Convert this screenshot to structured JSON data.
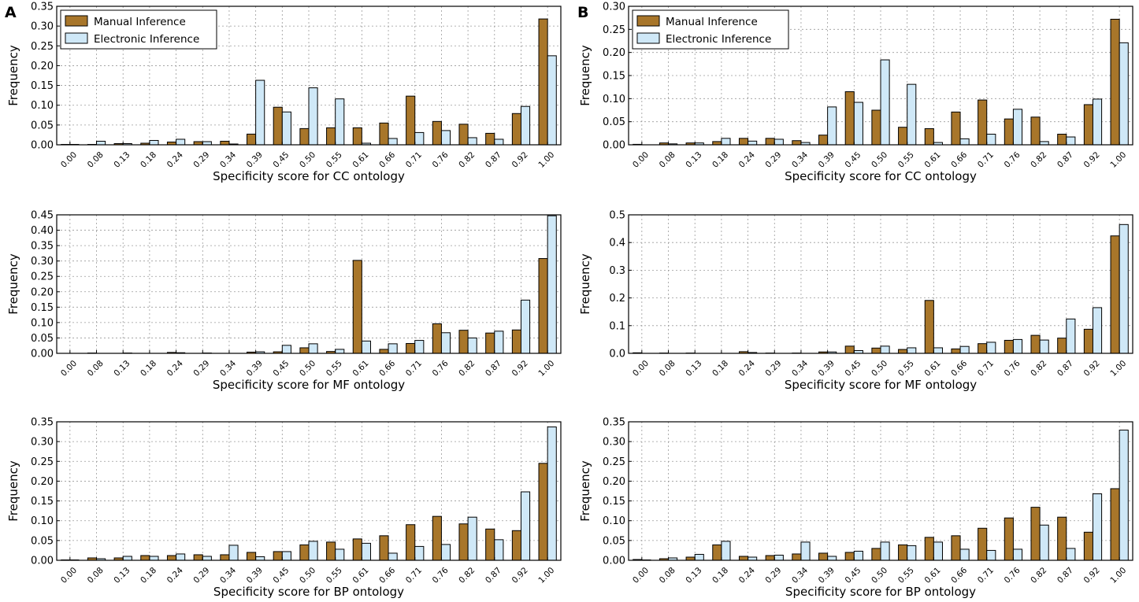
{
  "panels": [
    {
      "letter": "A"
    },
    {
      "letter": "B"
    }
  ],
  "legend": {
    "manual_label": "Manual Inference",
    "electronic_label": "Electronic Inference"
  },
  "colors": {
    "manual": "#A8762A",
    "electronic": "#CFE8F7",
    "edge": "#000000"
  },
  "chart_data": [
    {
      "panel": "A",
      "type": "bar",
      "title": "",
      "xlabel": "Specificity score for CC ontology",
      "ylabel": "Frequency",
      "categories": [
        "0.00",
        "0.08",
        "0.13",
        "0.18",
        "0.24",
        "0.29",
        "0.34",
        "0.39",
        "0.45",
        "0.50",
        "0.55",
        "0.61",
        "0.66",
        "0.71",
        "0.76",
        "0.82",
        "0.87",
        "0.92",
        "1.00"
      ],
      "ylim": [
        0,
        0.35
      ],
      "yticks": [
        "0.00",
        "0.05",
        "0.10",
        "0.15",
        "0.20",
        "0.25",
        "0.30",
        "0.35"
      ],
      "series": [
        {
          "name": "Manual Inference",
          "values": [
            0.001,
            0.001,
            0.003,
            0.004,
            0.007,
            0.008,
            0.009,
            0.027,
            0.095,
            0.041,
            0.043,
            0.043,
            0.055,
            0.123,
            0.059,
            0.052,
            0.029,
            0.079,
            0.318
          ]
        },
        {
          "name": "Electronic Inference",
          "values": [
            0.001,
            0.009,
            0.003,
            0.011,
            0.014,
            0.008,
            0.002,
            0.163,
            0.083,
            0.144,
            0.116,
            0.004,
            0.016,
            0.031,
            0.036,
            0.018,
            0.014,
            0.097,
            0.225
          ]
        }
      ]
    },
    {
      "panel": "A",
      "type": "bar",
      "title": "",
      "xlabel": "Specificity score for MF ontology",
      "ylabel": "Frequency",
      "categories": [
        "0.00",
        "0.08",
        "0.13",
        "0.18",
        "0.24",
        "0.29",
        "0.34",
        "0.39",
        "0.45",
        "0.50",
        "0.55",
        "0.61",
        "0.66",
        "0.71",
        "0.76",
        "0.82",
        "0.87",
        "0.92",
        "1.00"
      ],
      "ylim": [
        0,
        0.45
      ],
      "yticks": [
        "0.00",
        "0.05",
        "0.10",
        "0.15",
        "0.20",
        "0.25",
        "0.30",
        "0.35",
        "0.40",
        "0.45"
      ],
      "series": [
        {
          "name": "Manual Inference",
          "values": [
            0.0,
            0.001,
            0.0,
            0.0,
            0.003,
            0.0,
            0.0,
            0.004,
            0.005,
            0.018,
            0.006,
            0.302,
            0.013,
            0.032,
            0.096,
            0.075,
            0.066,
            0.076,
            0.308
          ]
        },
        {
          "name": "Electronic Inference",
          "values": [
            0.0,
            0.0,
            0.001,
            0.0,
            0.002,
            0.001,
            0.0,
            0.005,
            0.026,
            0.031,
            0.013,
            0.04,
            0.031,
            0.042,
            0.067,
            0.05,
            0.072,
            0.173,
            0.447
          ]
        }
      ]
    },
    {
      "panel": "A",
      "type": "bar",
      "title": "",
      "xlabel": "Specificity score for BP ontology",
      "ylabel": "Frequency",
      "categories": [
        "0.00",
        "0.08",
        "0.13",
        "0.18",
        "0.24",
        "0.29",
        "0.34",
        "0.39",
        "0.45",
        "0.50",
        "0.55",
        "0.61",
        "0.66",
        "0.71",
        "0.76",
        "0.82",
        "0.87",
        "0.92",
        "1.00"
      ],
      "ylim": [
        0,
        0.35
      ],
      "yticks": [
        "0.00",
        "0.05",
        "0.10",
        "0.15",
        "0.20",
        "0.25",
        "0.30",
        "0.35"
      ],
      "series": [
        {
          "name": "Manual Inference",
          "values": [
            0.001,
            0.006,
            0.006,
            0.012,
            0.012,
            0.014,
            0.014,
            0.02,
            0.022,
            0.039,
            0.046,
            0.054,
            0.062,
            0.09,
            0.111,
            0.092,
            0.079,
            0.075,
            0.245
          ]
        },
        {
          "name": "Electronic Inference",
          "values": [
            0.001,
            0.004,
            0.01,
            0.01,
            0.016,
            0.01,
            0.038,
            0.009,
            0.022,
            0.048,
            0.028,
            0.043,
            0.018,
            0.035,
            0.04,
            0.109,
            0.052,
            0.173,
            0.337
          ]
        }
      ]
    },
    {
      "panel": "B",
      "type": "bar",
      "title": "",
      "xlabel": "Specificity score for CC ontology",
      "ylabel": "Frequency",
      "categories": [
        "0.00",
        "0.08",
        "0.13",
        "0.18",
        "0.24",
        "0.29",
        "0.34",
        "0.39",
        "0.45",
        "0.50",
        "0.55",
        "0.61",
        "0.66",
        "0.71",
        "0.76",
        "0.82",
        "0.87",
        "0.92",
        "1.00"
      ],
      "ylim": [
        0,
        0.3
      ],
      "yticks": [
        "0.00",
        "0.05",
        "0.10",
        "0.15",
        "0.20",
        "0.25",
        "0.30"
      ],
      "series": [
        {
          "name": "Manual Inference",
          "values": [
            0.001,
            0.004,
            0.004,
            0.007,
            0.014,
            0.014,
            0.009,
            0.021,
            0.115,
            0.075,
            0.038,
            0.035,
            0.071,
            0.097,
            0.056,
            0.06,
            0.023,
            0.087,
            0.272
          ]
        },
        {
          "name": "Electronic Inference",
          "values": [
            0.0,
            0.002,
            0.004,
            0.014,
            0.008,
            0.012,
            0.005,
            0.082,
            0.092,
            0.184,
            0.131,
            0.005,
            0.013,
            0.023,
            0.077,
            0.007,
            0.017,
            0.099,
            0.221
          ]
        }
      ]
    },
    {
      "panel": "B",
      "type": "bar",
      "title": "",
      "xlabel": "Specificity score for MF ontology",
      "ylabel": "Frequency",
      "categories": [
        "0.00",
        "0.08",
        "0.13",
        "0.18",
        "0.24",
        "0.29",
        "0.34",
        "0.39",
        "0.45",
        "0.50",
        "0.55",
        "0.61",
        "0.66",
        "0.71",
        "0.76",
        "0.82",
        "0.87",
        "0.92",
        "1.00"
      ],
      "ylim": [
        0,
        0.5
      ],
      "yticks": [
        "0.0",
        "0.1",
        "0.2",
        "0.3",
        "0.4",
        "0.5"
      ],
      "series": [
        {
          "name": "Manual Inference",
          "values": [
            0.002,
            0.001,
            0.001,
            0.0,
            0.006,
            0.001,
            0.001,
            0.005,
            0.026,
            0.019,
            0.014,
            0.191,
            0.016,
            0.035,
            0.047,
            0.065,
            0.055,
            0.087,
            0.424
          ]
        },
        {
          "name": "Electronic Inference",
          "values": [
            0.0,
            0.0,
            0.0,
            0.0,
            0.003,
            0.0,
            0.0,
            0.005,
            0.01,
            0.026,
            0.02,
            0.02,
            0.025,
            0.04,
            0.05,
            0.048,
            0.124,
            0.165,
            0.465
          ]
        }
      ]
    },
    {
      "panel": "B",
      "type": "bar",
      "title": "",
      "xlabel": "Specificity score for BP ontology",
      "ylabel": "Frequency",
      "categories": [
        "0.00",
        "0.08",
        "0.13",
        "0.18",
        "0.24",
        "0.29",
        "0.34",
        "0.39",
        "0.45",
        "0.50",
        "0.55",
        "0.61",
        "0.66",
        "0.71",
        "0.76",
        "0.82",
        "0.87",
        "0.92",
        "1.00"
      ],
      "ylim": [
        0,
        0.35
      ],
      "yticks": [
        "0.00",
        "0.05",
        "0.10",
        "0.15",
        "0.20",
        "0.25",
        "0.30",
        "0.35"
      ],
      "series": [
        {
          "name": "Manual Inference",
          "values": [
            0.002,
            0.004,
            0.008,
            0.039,
            0.01,
            0.012,
            0.016,
            0.018,
            0.02,
            0.03,
            0.039,
            0.058,
            0.062,
            0.081,
            0.107,
            0.134,
            0.109,
            0.071,
            0.181
          ]
        },
        {
          "name": "Electronic Inference",
          "values": [
            0.001,
            0.006,
            0.015,
            0.048,
            0.008,
            0.013,
            0.046,
            0.01,
            0.023,
            0.046,
            0.037,
            0.046,
            0.028,
            0.025,
            0.028,
            0.089,
            0.03,
            0.168,
            0.329
          ]
        }
      ]
    }
  ]
}
